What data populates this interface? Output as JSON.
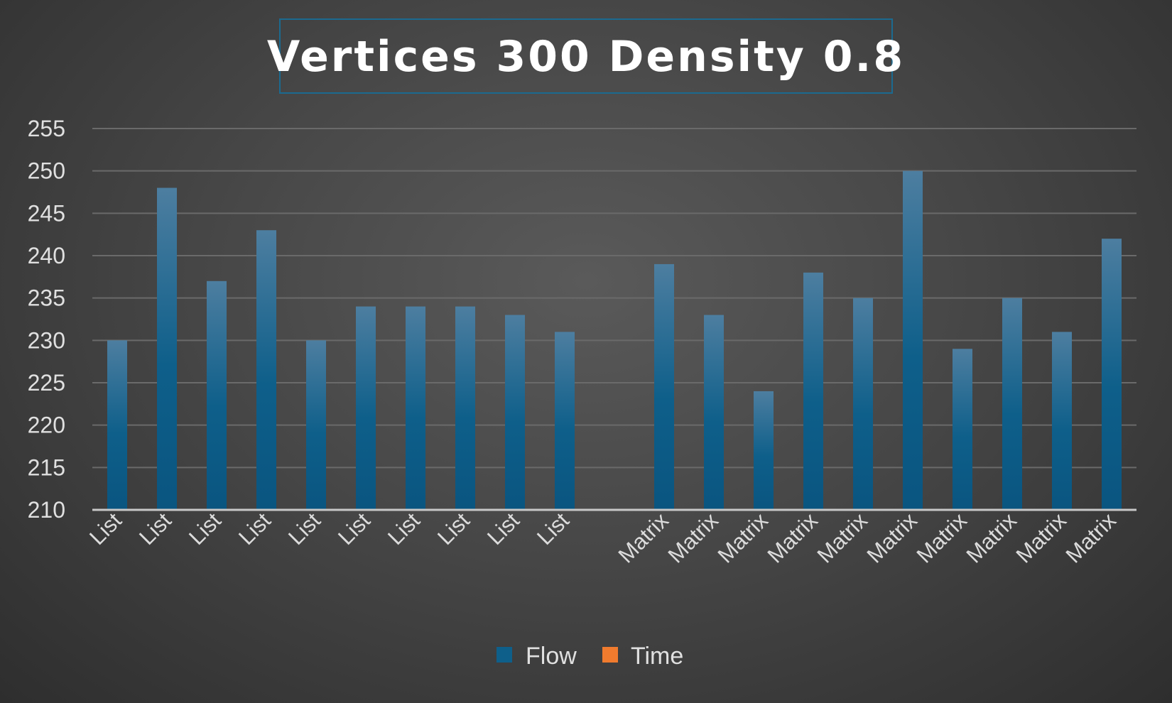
{
  "chart_data": {
    "type": "bar",
    "title": "Vertices 300 Density 0.8",
    "xlabel": "",
    "ylabel": "",
    "ylim": [
      210,
      255
    ],
    "yticks": [
      210,
      215,
      220,
      225,
      230,
      235,
      240,
      245,
      250,
      255
    ],
    "grid": true,
    "legend_position": "bottom",
    "categories": [
      "List",
      "List",
      "List",
      "List",
      "List",
      "List",
      "List",
      "List",
      "List",
      "List",
      "",
      "Matrix",
      "Matrix",
      "Matrix",
      "Matrix",
      "Matrix",
      "Matrix",
      "Matrix",
      "Matrix",
      "Matrix",
      "Matrix"
    ],
    "series": [
      {
        "name": "Flow",
        "color": "#0e5f8a",
        "values": [
          230,
          248,
          237,
          243,
          230,
          234,
          234,
          234,
          233,
          231,
          null,
          239,
          233,
          224,
          238,
          235,
          250,
          229,
          235,
          231,
          242
        ]
      },
      {
        "name": "Time",
        "color": "#f07b2e",
        "values": [
          null,
          null,
          null,
          null,
          null,
          null,
          null,
          null,
          null,
          null,
          null,
          null,
          null,
          null,
          null,
          null,
          null,
          null,
          null,
          null,
          null
        ]
      }
    ]
  }
}
